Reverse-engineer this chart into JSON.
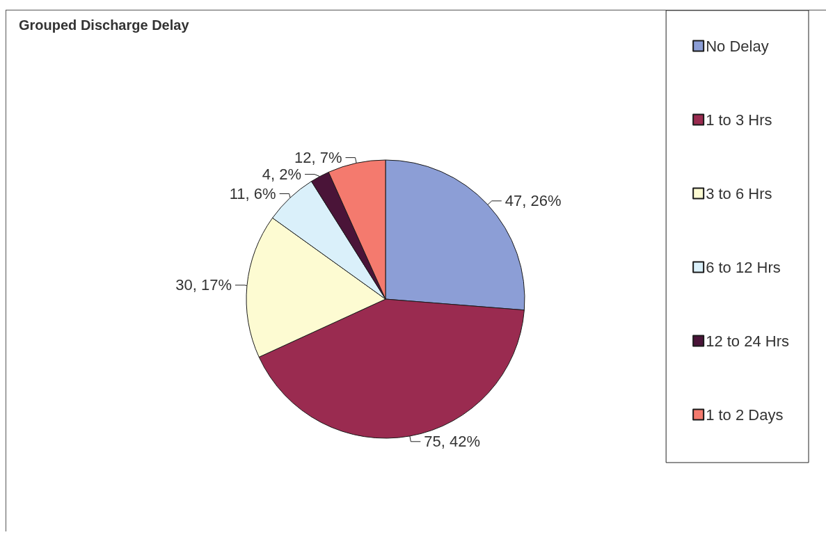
{
  "chart_data": {
    "type": "pie",
    "title": "Grouped Discharge Delay",
    "categories": [
      "No Delay",
      "1 to 3 Hrs",
      "3 to 6 Hrs",
      "6 to 12 Hrs",
      "12 to 24 Hrs",
      "1 to 2 Days"
    ],
    "values": [
      47,
      75,
      30,
      11,
      4,
      12
    ],
    "colors": [
      "#8c9ed6",
      "#9a2b50",
      "#fdfbd2",
      "#daf0fa",
      "#4a1438",
      "#f47a6e"
    ],
    "value_labels": [
      "47, 26%",
      "75, 42%",
      "30, 17%",
      "11, 6%",
      "4, 2%",
      "12, 7%"
    ],
    "legend": "right"
  }
}
